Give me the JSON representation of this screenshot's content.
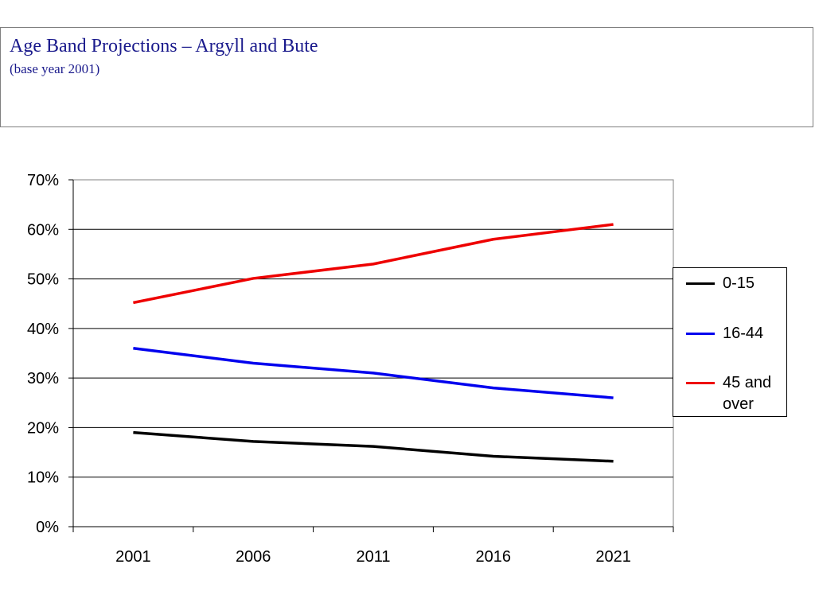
{
  "header": {
    "title": "Age Band Projections – Argyll and Bute",
    "subtitle": "(base year 2001)"
  },
  "chart_data": {
    "type": "line",
    "categories": [
      "2001",
      "2006",
      "2011",
      "2016",
      "2021"
    ],
    "series": [
      {
        "name": "0-15",
        "color": "#000000",
        "values": [
          19,
          17.2,
          16.2,
          14.2,
          13.2
        ]
      },
      {
        "name": "16-44",
        "color": "#0000ee",
        "values": [
          36,
          33,
          31,
          28,
          26
        ]
      },
      {
        "name": "45 and over",
        "color": "#ee0000",
        "values": [
          45.2,
          50.1,
          53,
          58,
          61
        ]
      }
    ],
    "yticks": [
      "0%",
      "10%",
      "20%",
      "30%",
      "40%",
      "50%",
      "60%",
      "70%"
    ],
    "ylim": [
      0,
      70
    ],
    "y_unit": "%",
    "grid": true,
    "legend_position": "right",
    "xlabel": "",
    "ylabel": ""
  }
}
